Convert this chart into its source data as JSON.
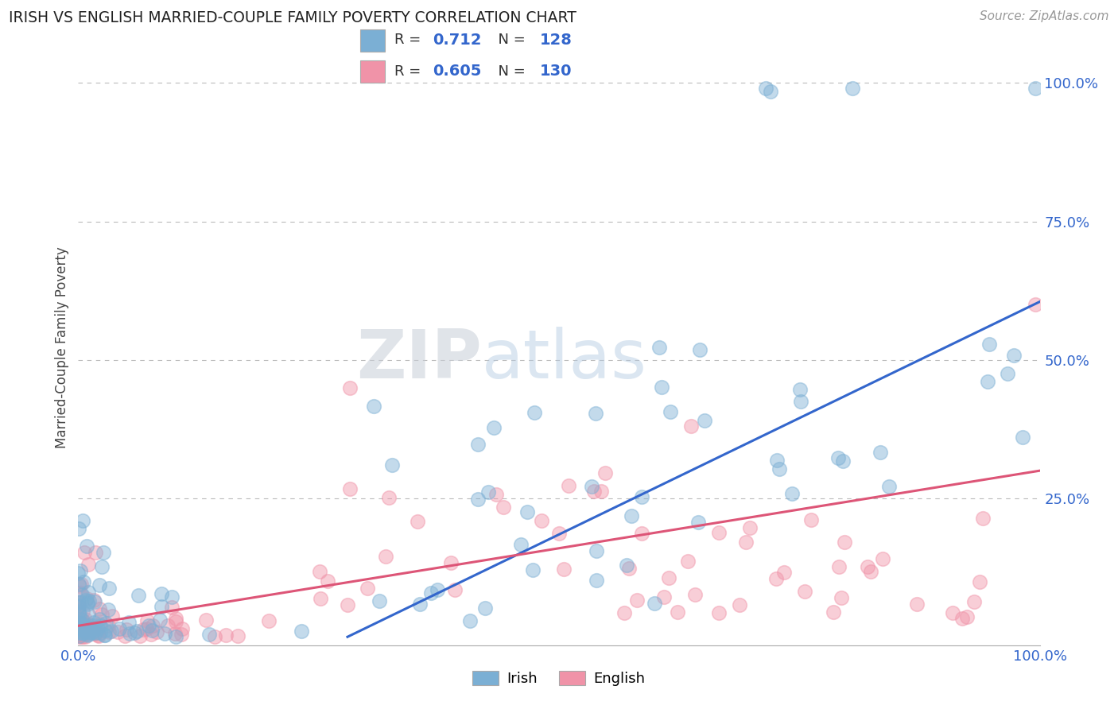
{
  "title": "IRISH VS ENGLISH MARRIED-COUPLE FAMILY POVERTY CORRELATION CHART",
  "source": "Source: ZipAtlas.com",
  "ylabel": "Married-Couple Family Poverty",
  "watermark": "ZIPatlas",
  "irish_color": "#7bafd4",
  "english_color": "#f093a8",
  "irish_line_color": "#3366cc",
  "english_line_color": "#dd5577",
  "irish_R": "0.712",
  "irish_N": "128",
  "english_R": "0.605",
  "english_N": "130",
  "ytick_positions": [
    0.25,
    0.5,
    0.75,
    1.0
  ],
  "ytick_labels": [
    "25.0%",
    "50.0%",
    "75.0%",
    "100.0%"
  ],
  "grid_color": "#bbbbbb",
  "xlim": [
    0,
    1.0
  ],
  "ylim": [
    -0.015,
    1.06
  ],
  "trend_blue": [
    0.28,
    0.0,
    1.0,
    0.605
  ],
  "trend_pink": [
    0.0,
    0.02,
    1.0,
    0.3
  ]
}
